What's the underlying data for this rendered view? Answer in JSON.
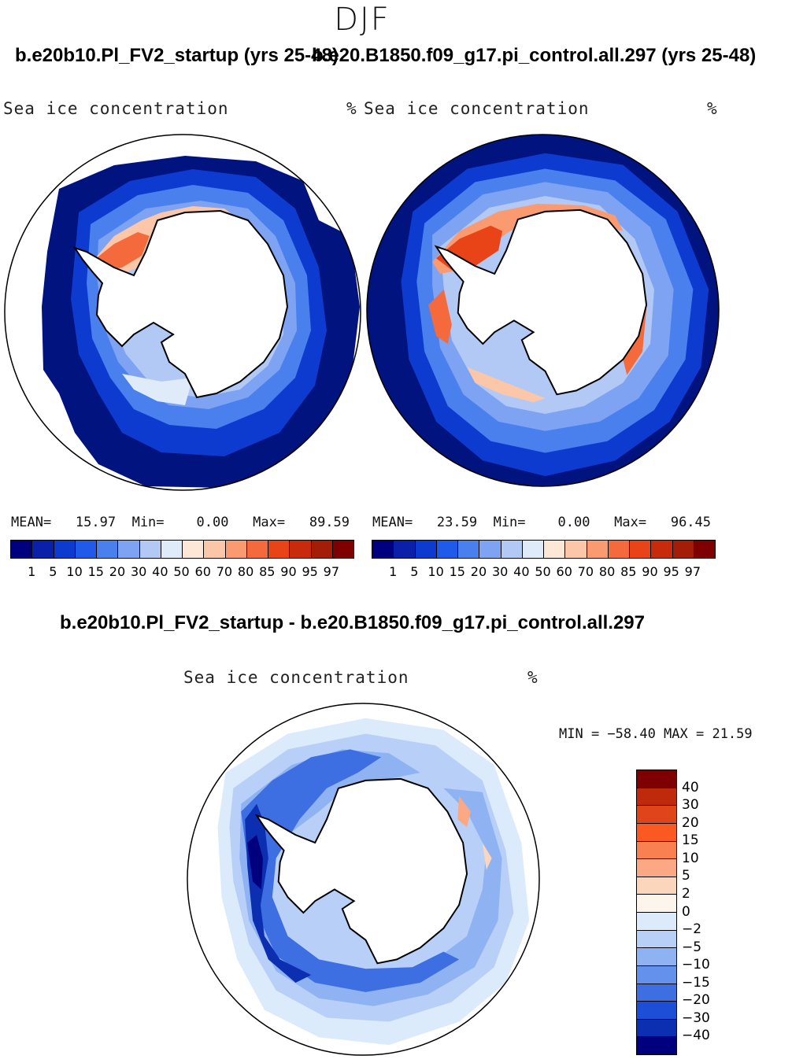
{
  "figure": {
    "season": "DJF",
    "case_title": "b.e20b10.Pl_FV2_startup (yrs 25-48)",
    "control_title": "b.e20.B1850.f09_g17.pi_control.all.297 (yrs 25-48)",
    "diff_title": "b.e20b10.Pl_FV2_startup - b.e20.B1850.f09_g17.pi_control.all.297"
  },
  "panels": [
    {
      "label": "Sea ice concentration",
      "units": "%",
      "stats": {
        "mean_label": "MEAN=",
        "mean": "15.97",
        "min_label": "Min=",
        "min": "0.00",
        "max_label": "Max=",
        "max": "89.59"
      }
    },
    {
      "label": "Sea ice concentration",
      "units": "%",
      "stats": {
        "mean_label": "MEAN=",
        "mean": "23.59",
        "min_label": "Min=",
        "min": "0.00",
        "max_label": "Max=",
        "max": "96.45"
      }
    },
    {
      "label": "Sea ice concentration",
      "units": "%",
      "minmax": "MIN = −58.40 MAX =  21.59"
    }
  ],
  "colorbar_main": {
    "colors": [
      "#00007f",
      "#0a20a8",
      "#0d3bd0",
      "#1f5ae8",
      "#4a80ee",
      "#7ea3f2",
      "#b3c9f5",
      "#e0ebfa",
      "#fde8d8",
      "#fcc6a8",
      "#f99a70",
      "#f56a3c",
      "#e84418",
      "#c82a0c",
      "#a31d07",
      "#7f0000"
    ],
    "ticks": [
      "1",
      "5",
      "10",
      "15",
      "20",
      "30",
      "40",
      "50",
      "60",
      "70",
      "80",
      "85",
      "90",
      "95",
      "97"
    ]
  },
  "colorbar_diff": {
    "colors": [
      "#7f0000",
      "#c02a0c",
      "#e0451a",
      "#fa5a22",
      "#f98050",
      "#fca884",
      "#fcd6bc",
      "#fdf4ec",
      "#dcebfb",
      "#b8d0f8",
      "#8fb3f2",
      "#6391ec",
      "#3d6fe3",
      "#1c4ed8",
      "#0b2fb0",
      "#00007f"
    ],
    "ticks": [
      "40",
      "30",
      "20",
      "15",
      "10",
      "5",
      "2",
      "0",
      "−2",
      "−5",
      "−10",
      "−15",
      "−20",
      "−30",
      "−40"
    ]
  }
}
